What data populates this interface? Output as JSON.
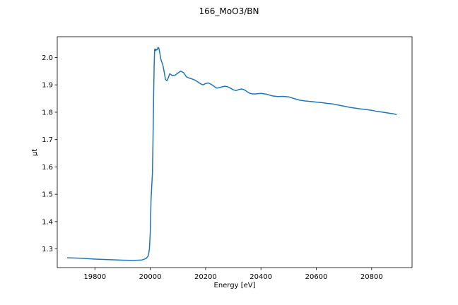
{
  "chart_data": {
    "type": "line",
    "title": "166_MoO3/BN",
    "xlabel": "Energy [eV]",
    "ylabel": "μt",
    "xlim": [
      19664,
      20946
    ],
    "ylim": [
      1.232,
      2.076
    ],
    "x_ticks": [
      19800,
      20000,
      20200,
      20400,
      20600,
      20800
    ],
    "x_tick_labels": [
      "19800",
      "20000",
      "20200",
      "20400",
      "20600",
      "20800"
    ],
    "y_ticks": [
      1.3,
      1.4,
      1.5,
      1.6,
      1.7,
      1.8,
      1.9,
      2.0
    ],
    "y_tick_labels": [
      "1.3",
      "1.4",
      "1.5",
      "1.6",
      "1.7",
      "1.8",
      "1.9",
      "2.0"
    ],
    "grid": false,
    "series": [
      {
        "color": "#1f77b4",
        "x": [
          19700,
          19750,
          19800,
          19850,
          19900,
          19940,
          19970,
          19985,
          19993,
          19997,
          20000,
          20003,
          20006,
          20008,
          20010,
          20012,
          20014,
          20016,
          20018,
          20020,
          20022,
          20025,
          20028,
          20031,
          20034,
          20037,
          20040,
          20045,
          20050,
          20055,
          20060,
          20065,
          20070,
          20075,
          20080,
          20085,
          20090,
          20100,
          20110,
          20120,
          20125,
          20130,
          20140,
          20150,
          20160,
          20170,
          20180,
          20190,
          20200,
          20210,
          20220,
          20230,
          20240,
          20250,
          20260,
          20270,
          20280,
          20290,
          20300,
          20310,
          20320,
          20330,
          20340,
          20350,
          20360,
          20370,
          20380,
          20390,
          20400,
          20420,
          20440,
          20460,
          20480,
          20500,
          20520,
          20540,
          20560,
          20580,
          20600,
          20620,
          20640,
          20660,
          20680,
          20700,
          20720,
          20740,
          20760,
          20780,
          20800,
          20820,
          20840,
          20860,
          20880,
          20890
        ],
        "y": [
          1.268,
          1.266,
          1.263,
          1.261,
          1.259,
          1.258,
          1.26,
          1.265,
          1.275,
          1.3,
          1.36,
          1.48,
          1.54,
          1.58,
          1.7,
          1.85,
          1.97,
          2.03,
          2.031,
          2.025,
          2.03,
          2.028,
          2.037,
          2.035,
          2.02,
          2.0,
          1.988,
          1.975,
          1.95,
          1.92,
          1.915,
          1.925,
          1.94,
          1.938,
          1.933,
          1.935,
          1.935,
          1.943,
          1.95,
          1.945,
          1.938,
          1.93,
          1.925,
          1.922,
          1.918,
          1.912,
          1.905,
          1.9,
          1.905,
          1.907,
          1.902,
          1.895,
          1.888,
          1.89,
          1.893,
          1.895,
          1.893,
          1.888,
          1.882,
          1.879,
          1.883,
          1.885,
          1.882,
          1.875,
          1.869,
          1.867,
          1.867,
          1.868,
          1.869,
          1.866,
          1.86,
          1.857,
          1.858,
          1.856,
          1.85,
          1.844,
          1.841,
          1.839,
          1.837,
          1.835,
          1.832,
          1.83,
          1.826,
          1.822,
          1.818,
          1.815,
          1.812,
          1.81,
          1.807,
          1.803,
          1.8,
          1.797,
          1.794,
          1.791
        ]
      }
    ]
  }
}
